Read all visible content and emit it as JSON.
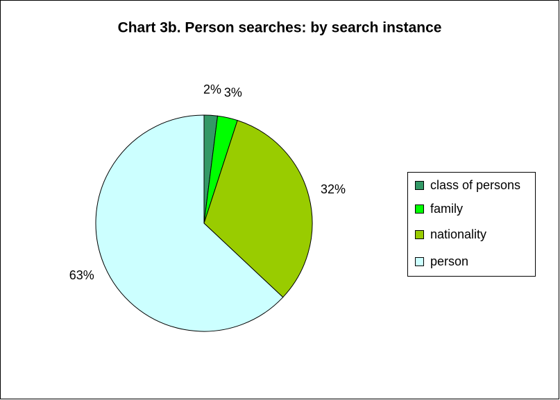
{
  "chart_data": {
    "type": "pie",
    "title": "Chart 3b. Person searches: by search instance",
    "categories": [
      "class of persons",
      "family",
      "nationality",
      "person"
    ],
    "values": [
      2,
      3,
      32,
      63
    ],
    "value_labels": [
      "2%",
      "3%",
      "32%",
      "63%"
    ],
    "colors": [
      "#339966",
      "#00ff00",
      "#99cc00",
      "#ccffff"
    ],
    "legend": "right"
  }
}
